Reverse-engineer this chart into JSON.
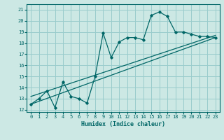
{
  "title": "",
  "xlabel": "Humidex (Indice chaleur)",
  "bg_color": "#cce8e4",
  "grid_color": "#99cccc",
  "line_color": "#006666",
  "xlim": [
    -0.5,
    23.5
  ],
  "ylim": [
    11.8,
    21.5
  ],
  "xticks": [
    0,
    1,
    2,
    3,
    4,
    5,
    6,
    7,
    8,
    9,
    10,
    11,
    12,
    13,
    14,
    15,
    16,
    17,
    18,
    19,
    20,
    21,
    22,
    23
  ],
  "yticks": [
    12,
    13,
    14,
    15,
    16,
    17,
    18,
    19,
    20,
    21
  ],
  "series1_x": [
    0,
    1,
    2,
    3,
    4,
    5,
    6,
    7,
    8,
    9,
    10,
    11,
    12,
    13,
    14,
    15,
    16,
    17,
    18,
    19,
    20,
    21,
    22,
    23
  ],
  "series1_y": [
    12.5,
    13.0,
    13.7,
    12.2,
    14.5,
    13.2,
    13.0,
    12.6,
    15.0,
    18.9,
    16.7,
    18.1,
    18.5,
    18.5,
    18.3,
    20.5,
    20.8,
    20.4,
    19.0,
    19.0,
    18.8,
    18.6,
    18.6,
    18.5
  ],
  "series2_x": [
    0,
    23
  ],
  "series2_y": [
    12.5,
    18.5
  ],
  "series3_x": [
    0,
    23
  ],
  "series3_y": [
    13.2,
    18.7
  ]
}
